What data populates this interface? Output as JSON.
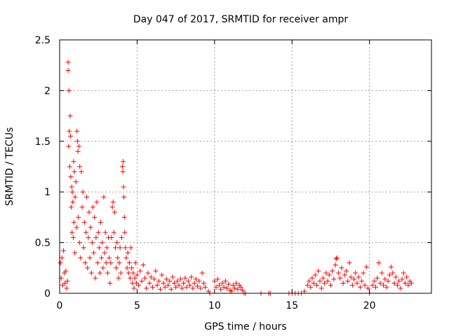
{
  "chart_data": {
    "type": "scatter",
    "title": "Day 047 of 2017, SRMTID for receiver ampr",
    "xlabel": "GPS time / hours",
    "ylabel": "SRMTID / TECUs",
    "xlim": [
      0,
      24
    ],
    "ylim": [
      0,
      2.5
    ],
    "xticks": [
      0,
      5,
      10,
      15,
      20
    ],
    "yticks": [
      0,
      0.5,
      1,
      1.5,
      2,
      2.5
    ],
    "xtick_labels": [
      "0",
      "5",
      "10",
      "15",
      "20"
    ],
    "ytick_labels": [
      "0",
      "0.5",
      "1",
      "1.5",
      "2",
      "2.5"
    ],
    "grid": true,
    "marker": "plus",
    "series": [
      {
        "name": "SRMTID",
        "color": "#ff0000",
        "points": [
          [
            0.05,
            0.3
          ],
          [
            0.1,
            0.15
          ],
          [
            0.15,
            0.35
          ],
          [
            0.2,
            0.08
          ],
          [
            0.25,
            0.42
          ],
          [
            0.3,
            0.2
          ],
          [
            0.35,
            0.1
          ],
          [
            0.4,
            0.22
          ],
          [
            0.45,
            0.05
          ],
          [
            0.5,
            0.12
          ],
          [
            0.55,
            2.28
          ],
          [
            0.55,
            2.2
          ],
          [
            0.58,
            1.45
          ],
          [
            0.6,
            2.0
          ],
          [
            0.62,
            1.6
          ],
          [
            0.65,
            1.25
          ],
          [
            0.68,
            1.75
          ],
          [
            0.7,
            1.55
          ],
          [
            0.72,
            1.15
          ],
          [
            0.75,
            0.85
          ],
          [
            0.78,
            1.05
          ],
          [
            0.8,
            0.6
          ],
          [
            0.82,
            1.0
          ],
          [
            0.85,
            0.9
          ],
          [
            0.88,
            0.55
          ],
          [
            0.9,
            1.3
          ],
          [
            0.92,
            0.7
          ],
          [
            0.95,
            1.2
          ],
          [
            0.98,
            0.4
          ],
          [
            1.0,
            0.95
          ],
          [
            1.05,
            1.1
          ],
          [
            1.1,
            0.65
          ],
          [
            1.12,
            1.6
          ],
          [
            1.15,
            1.5
          ],
          [
            1.18,
            1.4
          ],
          [
            1.2,
            0.75
          ],
          [
            1.25,
            1.45
          ],
          [
            1.28,
            0.5
          ],
          [
            1.3,
            1.25
          ],
          [
            1.35,
            0.35
          ],
          [
            1.4,
            1.2
          ],
          [
            1.45,
            0.85
          ],
          [
            1.5,
            1.0
          ],
          [
            1.55,
            0.45
          ],
          [
            1.6,
            0.7
          ],
          [
            1.65,
            0.3
          ],
          [
            1.7,
            0.6
          ],
          [
            1.75,
            0.95
          ],
          [
            1.8,
            0.25
          ],
          [
            1.85,
            0.55
          ],
          [
            1.9,
            0.8
          ],
          [
            1.95,
            0.35
          ],
          [
            2.0,
            0.65
          ],
          [
            2.05,
            0.2
          ],
          [
            2.1,
            0.5
          ],
          [
            2.15,
            0.85
          ],
          [
            2.2,
            0.4
          ],
          [
            2.25,
            0.75
          ],
          [
            2.3,
            0.15
          ],
          [
            2.35,
            0.55
          ],
          [
            2.4,
            0.9
          ],
          [
            2.45,
            0.3
          ],
          [
            2.5,
            0.6
          ],
          [
            2.55,
            0.45
          ],
          [
            2.6,
            0.2
          ],
          [
            2.65,
            0.7
          ],
          [
            2.7,
            0.35
          ],
          [
            2.75,
            0.5
          ],
          [
            2.8,
            0.25
          ],
          [
            2.85,
            0.95
          ],
          [
            2.9,
            0.4
          ],
          [
            2.95,
            0.6
          ],
          [
            3.0,
            0.3
          ],
          [
            3.05,
            0.45
          ],
          [
            3.1,
            0.2
          ],
          [
            3.15,
            0.55
          ],
          [
            3.2,
            0.35
          ],
          [
            3.25,
            0.1
          ],
          [
            3.3,
            0.3
          ],
          [
            3.35,
            0.55
          ],
          [
            3.4,
            0.85
          ],
          [
            3.45,
            0.9
          ],
          [
            3.5,
            0.6
          ],
          [
            3.55,
            0.8
          ],
          [
            3.6,
            0.45
          ],
          [
            3.65,
            0.25
          ],
          [
            3.7,
            0.5
          ],
          [
            3.75,
            0.35
          ],
          [
            3.8,
            0.15
          ],
          [
            3.85,
            0.3
          ],
          [
            3.9,
            0.45
          ],
          [
            3.95,
            0.2
          ],
          [
            4.0,
            0.55
          ],
          [
            4.05,
            1.25
          ],
          [
            4.08,
            1.2
          ],
          [
            4.1,
            1.3
          ],
          [
            4.12,
            1.05
          ],
          [
            4.15,
            0.95
          ],
          [
            4.18,
            0.75
          ],
          [
            4.2,
            0.6
          ],
          [
            4.25,
            0.45
          ],
          [
            4.3,
            0.35
          ],
          [
            4.35,
            0.25
          ],
          [
            4.4,
            0.4
          ],
          [
            4.45,
            0.2
          ],
          [
            4.5,
            0.3
          ],
          [
            4.55,
            0.15
          ],
          [
            4.6,
            0.45
          ],
          [
            4.65,
            0.25
          ],
          [
            4.7,
            0.1
          ],
          [
            4.75,
            0.2
          ],
          [
            4.8,
            0.05
          ],
          [
            4.85,
            0.15
          ],
          [
            4.9,
            0.3
          ],
          [
            4.95,
            0.1
          ],
          [
            5.0,
            0.18
          ],
          [
            5.1,
            0.08
          ],
          [
            5.2,
            0.22
          ],
          [
            5.3,
            0.12
          ],
          [
            5.4,
            0.28
          ],
          [
            5.5,
            0.15
          ],
          [
            5.6,
            0.05
          ],
          [
            5.7,
            0.2
          ],
          [
            5.8,
            0.1
          ],
          [
            5.9,
            0.16
          ],
          [
            6.0,
            0.06
          ],
          [
            6.1,
            0.14
          ],
          [
            6.2,
            0.22
          ],
          [
            6.3,
            0.08
          ],
          [
            6.4,
            0.12
          ],
          [
            6.5,
            0.04
          ],
          [
            6.6,
            0.18
          ],
          [
            6.7,
            0.1
          ],
          [
            6.8,
            0.06
          ],
          [
            6.9,
            0.14
          ],
          [
            7.0,
            0.08
          ],
          [
            7.1,
            0.12
          ],
          [
            7.2,
            0.04
          ],
          [
            7.3,
            0.16
          ],
          [
            7.4,
            0.1
          ],
          [
            7.5,
            0.06
          ],
          [
            7.6,
            0.12
          ],
          [
            7.7,
            0.08
          ],
          [
            7.8,
            0.14
          ],
          [
            7.9,
            0.05
          ],
          [
            8.0,
            0.1
          ],
          [
            8.1,
            0.15
          ],
          [
            8.2,
            0.06
          ],
          [
            8.3,
            0.12
          ],
          [
            8.4,
            0.08
          ],
          [
            8.5,
            0.16
          ],
          [
            8.6,
            0.05
          ],
          [
            8.7,
            0.1
          ],
          [
            8.8,
            0.14
          ],
          [
            8.9,
            0.07
          ],
          [
            9.0,
            0.12
          ],
          [
            9.1,
            0.05
          ],
          [
            9.2,
            0.2
          ],
          [
            9.3,
            0.1
          ],
          [
            9.4,
            0.06
          ],
          [
            9.6,
            0.02
          ],
          [
            9.7,
            0.0
          ],
          [
            10.0,
            0.12
          ],
          [
            10.1,
            0.06
          ],
          [
            10.2,
            0.14
          ],
          [
            10.3,
            0.08
          ],
          [
            10.4,
            0.04
          ],
          [
            10.5,
            0.1
          ],
          [
            10.6,
            0.06
          ],
          [
            10.7,
            0.12
          ],
          [
            10.8,
            0.05
          ],
          [
            10.9,
            0.09
          ],
          [
            11.0,
            0.03
          ],
          [
            11.1,
            0.02
          ],
          [
            11.2,
            0.08
          ],
          [
            11.3,
            0.05
          ],
          [
            11.4,
            0.1
          ],
          [
            11.5,
            0.04
          ],
          [
            11.6,
            0.08
          ],
          [
            11.7,
            0.06
          ],
          [
            11.8,
            0.03
          ],
          [
            11.9,
            0.0
          ],
          [
            12.0,
            0.0
          ],
          [
            13.0,
            0.0
          ],
          [
            13.5,
            0.0
          ],
          [
            13.6,
            0.0
          ],
          [
            14.8,
            0.0
          ],
          [
            15.0,
            0.0
          ],
          [
            15.2,
            0.0
          ],
          [
            15.4,
            0.0
          ],
          [
            15.6,
            0.0
          ],
          [
            15.8,
            0.02
          ],
          [
            16.0,
            0.08
          ],
          [
            16.1,
            0.12
          ],
          [
            16.2,
            0.06
          ],
          [
            16.3,
            0.15
          ],
          [
            16.4,
            0.1
          ],
          [
            16.5,
            0.18
          ],
          [
            16.6,
            0.08
          ],
          [
            16.7,
            0.22
          ],
          [
            16.8,
            0.12
          ],
          [
            16.9,
            0.05
          ],
          [
            17.0,
            0.15
          ],
          [
            17.1,
            0.1
          ],
          [
            17.2,
            0.2
          ],
          [
            17.3,
            0.12
          ],
          [
            17.4,
            0.18
          ],
          [
            17.5,
            0.08
          ],
          [
            17.6,
            0.22
          ],
          [
            17.7,
            0.14
          ],
          [
            17.8,
            0.28
          ],
          [
            17.85,
            0.34
          ],
          [
            17.9,
            0.35
          ],
          [
            18.0,
            0.2
          ],
          [
            18.1,
            0.15
          ],
          [
            18.2,
            0.25
          ],
          [
            18.3,
            0.1
          ],
          [
            18.4,
            0.18
          ],
          [
            18.5,
            0.22
          ],
          [
            18.6,
            0.12
          ],
          [
            18.7,
            0.3
          ],
          [
            18.8,
            0.16
          ],
          [
            18.9,
            0.08
          ],
          [
            19.0,
            0.14
          ],
          [
            19.1,
            0.2
          ],
          [
            19.2,
            0.1
          ],
          [
            19.3,
            0.16
          ],
          [
            19.4,
            0.06
          ],
          [
            19.5,
            0.12
          ],
          [
            19.6,
            0.2
          ],
          [
            19.7,
            0.08
          ],
          [
            19.8,
            0.26
          ],
          [
            19.9,
            0.05
          ],
          [
            20.0,
            0.0
          ],
          [
            20.2,
            0.08
          ],
          [
            20.3,
            0.12
          ],
          [
            20.4,
            0.06
          ],
          [
            20.5,
            0.15
          ],
          [
            20.6,
            0.3
          ],
          [
            20.7,
            0.1
          ],
          [
            20.8,
            0.2
          ],
          [
            20.9,
            0.08
          ],
          [
            21.0,
            0.14
          ],
          [
            21.1,
            0.06
          ],
          [
            21.2,
            0.12
          ],
          [
            21.3,
            0.18
          ],
          [
            21.4,
            0.26
          ],
          [
            21.5,
            0.2
          ],
          [
            21.6,
            0.1
          ],
          [
            21.7,
            0.16
          ],
          [
            21.8,
            0.08
          ],
          [
            21.9,
            0.12
          ],
          [
            22.0,
            0.05
          ],
          [
            22.1,
            0.14
          ],
          [
            22.2,
            0.2
          ],
          [
            22.3,
            0.1
          ],
          [
            22.4,
            0.16
          ],
          [
            22.5,
            0.08
          ],
          [
            22.6,
            0.12
          ],
          [
            22.7,
            0.1
          ]
        ]
      }
    ]
  }
}
